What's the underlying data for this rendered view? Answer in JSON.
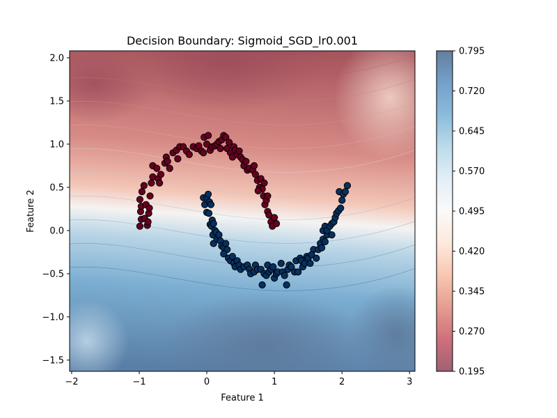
{
  "chart_data": {
    "type": "scatter",
    "title": "Decision Boundary: Sigmoid_SGD_lr0.001",
    "xlabel": "Feature 1",
    "ylabel": "Feature 2",
    "xlim": [
      -2.03,
      3.08
    ],
    "ylim": [
      -1.63,
      2.08
    ],
    "x_ticks": [
      "−2",
      "−1",
      "0",
      "1",
      "2",
      "3"
    ],
    "y_ticks": [
      "−1.5",
      "−1.0",
      "−0.5",
      "0.0",
      "0.5",
      "1.0",
      "1.5",
      "2.0"
    ],
    "grid": false,
    "background": "filled decision-probability contours (RdBu colormap, alpha 0.6)",
    "colorbar": {
      "range": [
        0.195,
        0.795
      ],
      "ticks": [
        "0.195",
        "0.270",
        "0.345",
        "0.420",
        "0.495",
        "0.570",
        "0.645",
        "0.720",
        "0.795"
      ],
      "colormap": [
        "#67001f",
        "#b2182b",
        "#d6604d",
        "#f4a582",
        "#fddbc7",
        "#f7f7f7",
        "#d1e5f0",
        "#92c5de",
        "#4393c3",
        "#2166ac",
        "#053061"
      ]
    },
    "series": [
      {
        "color": "#67001f",
        "points": [
          [
            -0.99,
            0.05
          ],
          [
            -0.97,
            0.13
          ],
          [
            -0.98,
            0.22
          ],
          [
            -0.97,
            0.28
          ],
          [
            -0.99,
            0.36
          ],
          [
            -0.96,
            0.45
          ],
          [
            -0.93,
            0.52
          ],
          [
            -0.9,
            0.3
          ],
          [
            -0.92,
            0.14
          ],
          [
            -0.88,
            0.06
          ],
          [
            -0.86,
            0.2
          ],
          [
            -0.84,
            0.4
          ],
          [
            -0.82,
            0.55
          ],
          [
            -0.8,
            0.62
          ],
          [
            -0.85,
            0.26
          ],
          [
            -0.87,
            0.1
          ],
          [
            -0.8,
            0.75
          ],
          [
            -0.74,
            0.72
          ],
          [
            -0.72,
            0.6
          ],
          [
            -0.7,
            0.55
          ],
          [
            -0.68,
            0.65
          ],
          [
            -0.62,
            0.78
          ],
          [
            -0.6,
            0.85
          ],
          [
            -0.58,
            0.8
          ],
          [
            -0.55,
            0.72
          ],
          [
            -0.5,
            0.9
          ],
          [
            -0.45,
            0.93
          ],
          [
            -0.43,
            0.83
          ],
          [
            -0.4,
            0.97
          ],
          [
            -0.35,
            0.97
          ],
          [
            -0.3,
            0.92
          ],
          [
            -0.26,
            0.88
          ],
          [
            -0.2,
            0.97
          ],
          [
            -0.15,
            0.95
          ],
          [
            -0.12,
            0.98
          ],
          [
            -0.08,
            0.92
          ],
          [
            -0.05,
            0.9
          ],
          [
            0.0,
            1.0
          ],
          [
            -0.04,
            1.08
          ],
          [
            0.02,
            1.1
          ],
          [
            0.05,
            0.93
          ],
          [
            0.08,
            0.97
          ],
          [
            0.12,
            0.98
          ],
          [
            0.15,
            1.0
          ],
          [
            0.18,
            1.03
          ],
          [
            0.2,
            0.95
          ],
          [
            0.22,
            1.05
          ],
          [
            0.25,
            1.1
          ],
          [
            0.28,
            1.08
          ],
          [
            0.3,
            0.95
          ],
          [
            0.33,
            1.02
          ],
          [
            0.35,
            0.9
          ],
          [
            0.38,
            0.85
          ],
          [
            0.4,
            0.97
          ],
          [
            0.42,
            0.93
          ],
          [
            0.45,
            0.88
          ],
          [
            0.48,
            0.92
          ],
          [
            0.5,
            0.85
          ],
          [
            0.53,
            0.82
          ],
          [
            0.55,
            0.75
          ],
          [
            0.58,
            0.8
          ],
          [
            0.6,
            0.7
          ],
          [
            0.63,
            0.72
          ],
          [
            0.68,
            0.7
          ],
          [
            0.7,
            0.75
          ],
          [
            0.72,
            0.65
          ],
          [
            0.75,
            0.58
          ],
          [
            0.78,
            0.5
          ],
          [
            0.8,
            0.6
          ],
          [
            0.82,
            0.48
          ],
          [
            0.84,
            0.4
          ],
          [
            0.86,
            0.3
          ],
          [
            0.88,
            0.35
          ],
          [
            0.9,
            0.22
          ],
          [
            0.92,
            0.18
          ],
          [
            0.95,
            0.1
          ],
          [
            0.97,
            0.05
          ],
          [
            1.0,
            0.15
          ],
          [
            1.03,
            0.08
          ],
          [
            0.85,
            0.55
          ],
          [
            0.76,
            0.46
          ],
          [
            0.9,
            0.4
          ]
        ]
      },
      {
        "color": "#053061",
        "points": [
          [
            -0.05,
            0.38
          ],
          [
            -0.03,
            0.3
          ],
          [
            0.0,
            0.38
          ],
          [
            0.02,
            0.42
          ],
          [
            0.04,
            0.33
          ],
          [
            0.06,
            0.3
          ],
          [
            0.0,
            0.21
          ],
          [
            0.03,
            0.2
          ],
          [
            0.05,
            0.07
          ],
          [
            0.08,
            0.12
          ],
          [
            0.07,
            0.05
          ],
          [
            0.1,
            0.08
          ],
          [
            0.12,
            0.0
          ],
          [
            0.09,
            -0.05
          ],
          [
            0.14,
            -0.02
          ],
          [
            0.1,
            -0.15
          ],
          [
            0.15,
            -0.1
          ],
          [
            0.18,
            -0.05
          ],
          [
            0.2,
            -0.12
          ],
          [
            0.22,
            -0.18
          ],
          [
            0.25,
            -0.2
          ],
          [
            0.28,
            -0.15
          ],
          [
            0.3,
            -0.22
          ],
          [
            0.32,
            -0.32
          ],
          [
            0.35,
            -0.35
          ],
          [
            0.38,
            -0.3
          ],
          [
            0.4,
            -0.38
          ],
          [
            0.42,
            -0.42
          ],
          [
            0.45,
            -0.35
          ],
          [
            0.48,
            -0.4
          ],
          [
            0.5,
            -0.45
          ],
          [
            0.55,
            -0.42
          ],
          [
            0.6,
            -0.4
          ],
          [
            0.63,
            -0.45
          ],
          [
            0.65,
            -0.5
          ],
          [
            0.7,
            -0.48
          ],
          [
            0.72,
            -0.4
          ],
          [
            0.75,
            -0.45
          ],
          [
            0.8,
            -0.45
          ],
          [
            0.82,
            -0.63
          ],
          [
            0.85,
            -0.5
          ],
          [
            0.88,
            -0.52
          ],
          [
            0.9,
            -0.4
          ],
          [
            0.92,
            -0.48
          ],
          [
            0.95,
            -0.45
          ],
          [
            0.98,
            -0.42
          ],
          [
            1.0,
            -0.55
          ],
          [
            1.03,
            -0.5
          ],
          [
            1.05,
            -0.48
          ],
          [
            1.1,
            -0.38
          ],
          [
            1.12,
            -0.48
          ],
          [
            1.15,
            -0.52
          ],
          [
            1.18,
            -0.63
          ],
          [
            1.2,
            -0.45
          ],
          [
            1.22,
            -0.4
          ],
          [
            1.25,
            -0.42
          ],
          [
            1.3,
            -0.48
          ],
          [
            1.32,
            -0.35
          ],
          [
            1.35,
            -0.48
          ],
          [
            1.38,
            -0.32
          ],
          [
            1.4,
            -0.35
          ],
          [
            1.42,
            -0.42
          ],
          [
            1.45,
            -0.38
          ],
          [
            1.48,
            -0.3
          ],
          [
            1.5,
            -0.32
          ],
          [
            1.53,
            -0.38
          ],
          [
            1.58,
            -0.22
          ],
          [
            1.62,
            -0.32
          ],
          [
            1.65,
            -0.22
          ],
          [
            1.68,
            -0.15
          ],
          [
            1.7,
            -0.2
          ],
          [
            1.72,
            -0.1
          ],
          [
            1.75,
            -0.13
          ],
          [
            1.78,
            -0.05
          ],
          [
            1.72,
            0.0
          ],
          [
            1.75,
            0.05
          ],
          [
            1.78,
            -0.0
          ],
          [
            1.82,
            0.05
          ],
          [
            1.85,
            0.08
          ],
          [
            1.88,
            0.1
          ],
          [
            1.9,
            0.15
          ],
          [
            1.92,
            0.2
          ],
          [
            1.95,
            0.23
          ],
          [
            1.98,
            0.26
          ],
          [
            1.96,
            0.45
          ],
          [
            2.0,
            0.35
          ],
          [
            2.02,
            0.42
          ],
          [
            2.05,
            0.45
          ],
          [
            2.08,
            0.52
          ],
          [
            1.85,
            -0.05
          ],
          [
            0.25,
            -0.27
          ],
          [
            1.55,
            -0.28
          ]
        ]
      }
    ]
  }
}
